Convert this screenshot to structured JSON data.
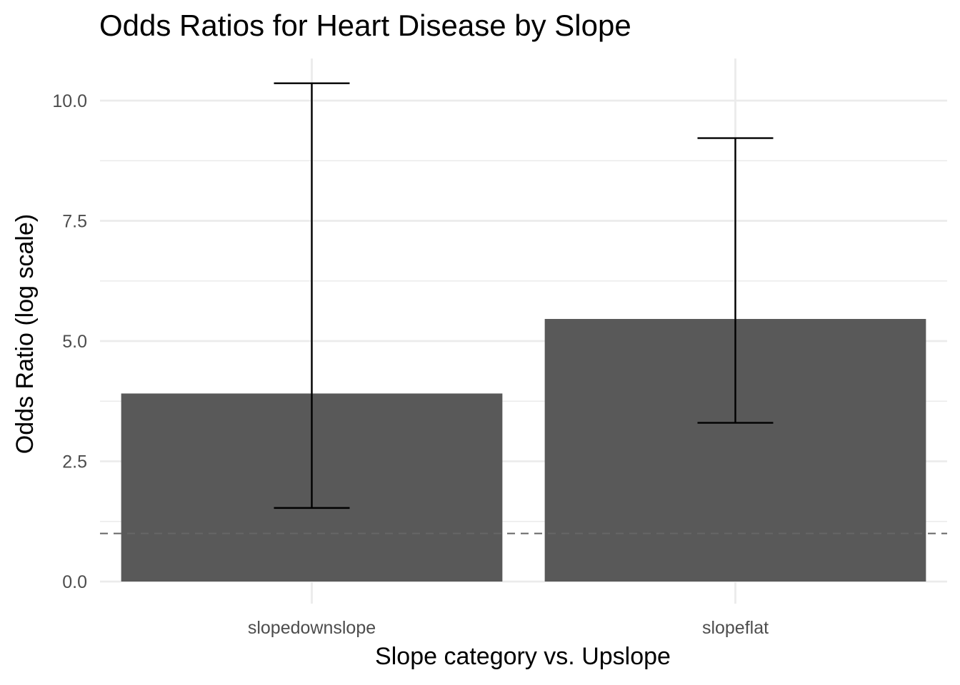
{
  "chart_data": {
    "type": "bar",
    "title": "Odds Ratios for Heart Disease by Slope",
    "xlabel": "Slope category vs. Upslope",
    "ylabel": "Odds Ratio (log scale)",
    "categories": [
      "slopedownslope",
      "slopeflat"
    ],
    "values": [
      3.91,
      5.46
    ],
    "ci_lower": [
      1.53,
      3.3
    ],
    "ci_upper": [
      10.36,
      9.22
    ],
    "reference_line": 1.0,
    "ylim": [
      -0.4,
      10.85
    ],
    "yticks": [
      0.0,
      2.5,
      5.0,
      7.5,
      10.0
    ],
    "ytick_labels": [
      "0.0",
      "2.5",
      "5.0",
      "7.5",
      "10.0"
    ],
    "grid": true,
    "bar_color": "#595959",
    "grid_color": "#ebebeb",
    "reference_line_color": "#666666"
  }
}
